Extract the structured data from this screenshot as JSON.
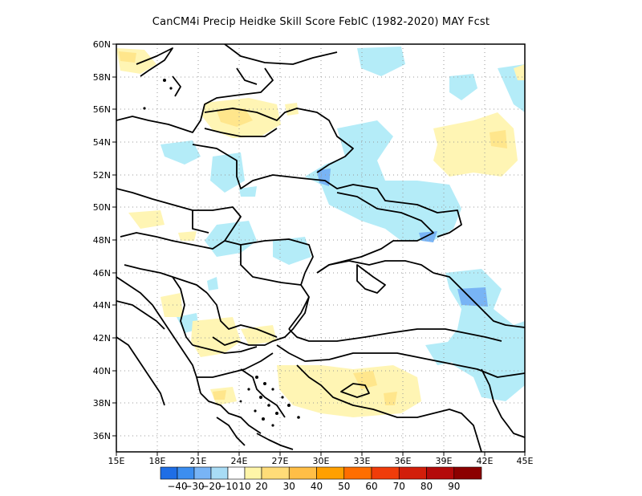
{
  "title": "CanCM4i Precip Heidke Skill Score FebIC (1982-2020) MAY Fcst",
  "map": {
    "lon_range": [
      15,
      45
    ],
    "lat_range": [
      35,
      60
    ],
    "x_ticks": [
      "15E",
      "18E",
      "21E",
      "24E",
      "27E",
      "30E",
      "33E",
      "36E",
      "39E",
      "42E",
      "45E"
    ],
    "y_ticks": [
      "60N",
      "58N",
      "56N",
      "54N",
      "52N",
      "50N",
      "48N",
      "46N",
      "44N",
      "42N",
      "40N",
      "38N",
      "36N"
    ],
    "grid": "dotted"
  },
  "colorbar": {
    "labels": [
      "−40",
      "−30",
      "−20",
      "−10",
      "10",
      "20",
      "30",
      "40",
      "50",
      "60",
      "70",
      "80",
      "90"
    ],
    "colors": [
      "#1e6ee6",
      "#3c8ef0",
      "#78b4f5",
      "#a8dcf5",
      "#ffffff",
      "#fff5a8",
      "#ffdc78",
      "#ffbe46",
      "#ffa000",
      "#ff6e00",
      "#f03c0a",
      "#d21e0a",
      "#b40a0a",
      "#8c0000"
    ]
  },
  "colors": {
    "light_blue": "#b4ecf8",
    "mid_blue": "#78b4f5",
    "dark_blue": "#3c8ef0",
    "light_yellow": "#fff5b4",
    "yellow": "#ffe68c",
    "orange": "#ffcd69"
  }
}
